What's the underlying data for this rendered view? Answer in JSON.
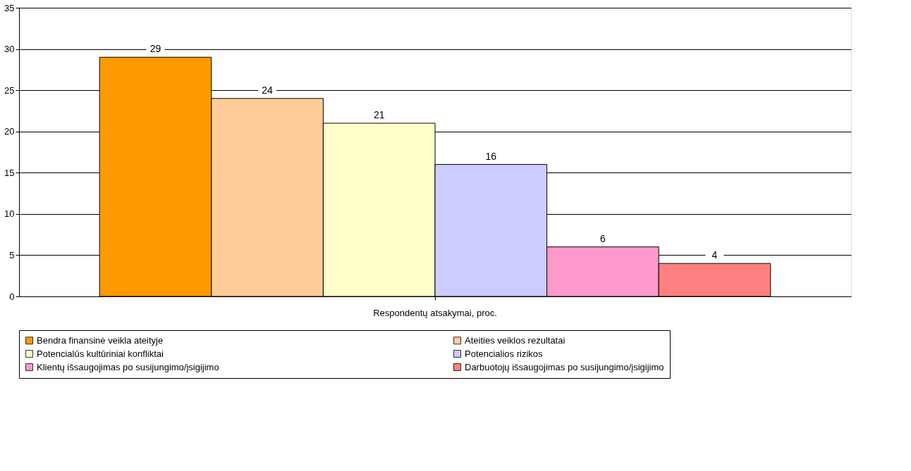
{
  "chart_data": {
    "type": "bar",
    "categories": [
      "Respondentų atsakymai, proc."
    ],
    "series": [
      {
        "name": "Bendra finansinė veikla ateityje",
        "color": "#ff9900",
        "values": [
          29
        ]
      },
      {
        "name": "Ateities veiklos rezultatai",
        "color": "#ffcc99",
        "values": [
          24
        ]
      },
      {
        "name": "Potencialūs kultūriniai konfliktai",
        "color": "#ffffcc",
        "values": [
          21
        ]
      },
      {
        "name": "Potencialios rizikos",
        "color": "#ccccff",
        "values": [
          16
        ]
      },
      {
        "name": "Klientų išsaugojimas po susijungimo/įsigijimo",
        "color": "#ff99cc",
        "values": [
          6
        ]
      },
      {
        "name": "Darbuotojų išsaugojimas po susijungimo/įsigijimo",
        "color": "#ff8080",
        "values": [
          4
        ]
      }
    ],
    "ylim": [
      0,
      35
    ],
    "yticks": [
      0,
      5,
      10,
      15,
      20,
      25,
      30,
      35
    ],
    "grid": "y",
    "legend": "bottom",
    "data_labels": true
  }
}
